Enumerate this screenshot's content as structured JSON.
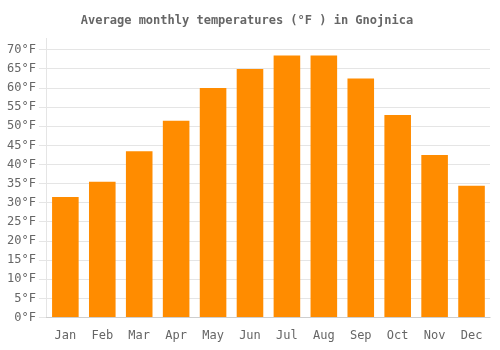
{
  "chart_data": {
    "type": "bar",
    "title": "Average monthly temperatures (°F ) in Gnojnica",
    "categories": [
      "Jan",
      "Feb",
      "Mar",
      "Apr",
      "May",
      "Jun",
      "Jul",
      "Aug",
      "Sep",
      "Oct",
      "Nov",
      "Dec"
    ],
    "values": [
      31.5,
      35.5,
      43.5,
      51.5,
      60.0,
      65.0,
      68.5,
      68.5,
      62.5,
      53.0,
      42.5,
      34.5
    ],
    "color": "#FF8C00",
    "ylim": [
      0,
      73
    ],
    "yticks": [
      {
        "value": 0,
        "label": "0°F"
      },
      {
        "value": 5,
        "label": "5°F"
      },
      {
        "value": 10,
        "label": "10°F"
      },
      {
        "value": 15,
        "label": "15°F"
      },
      {
        "value": 20,
        "label": "20°F"
      },
      {
        "value": 25,
        "label": "25°F"
      },
      {
        "value": 30,
        "label": "30°F"
      },
      {
        "value": 35,
        "label": "35°F"
      },
      {
        "value": 40,
        "label": "40°F"
      },
      {
        "value": 45,
        "label": "45°F"
      },
      {
        "value": 50,
        "label": "50°F"
      },
      {
        "value": 55,
        "label": "55°F"
      },
      {
        "value": 60,
        "label": "60°F"
      },
      {
        "value": 65,
        "label": "65°F"
      },
      {
        "value": 70,
        "label": "70°F"
      }
    ],
    "grid": true
  }
}
